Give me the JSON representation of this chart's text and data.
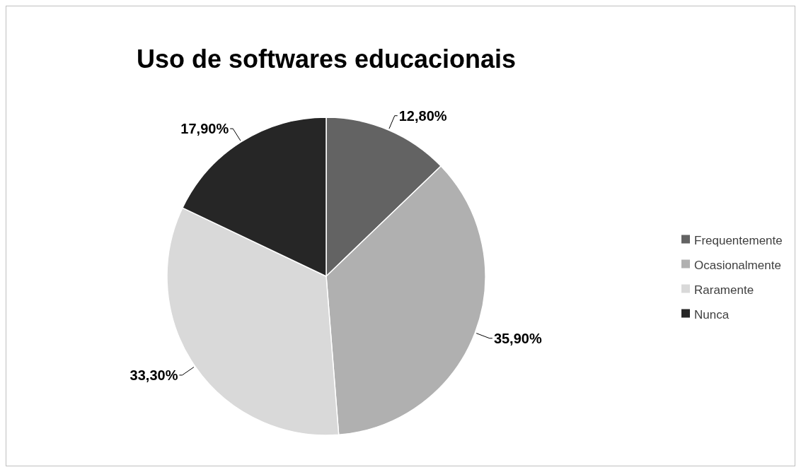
{
  "chart_data": {
    "type": "pie",
    "title": "Uso de softwares educacionais",
    "categories": [
      "Frequentemente",
      "Ocasionalmente",
      "Raramente",
      "Nunca"
    ],
    "values": [
      12.8,
      35.9,
      33.3,
      17.9
    ],
    "colors": [
      "#636363",
      "#b0b0b0",
      "#d9d9d9",
      "#262626"
    ],
    "value_labels": [
      "12,80%",
      "35,90%",
      "33,30%",
      "17,90%"
    ],
    "legend": "right"
  }
}
